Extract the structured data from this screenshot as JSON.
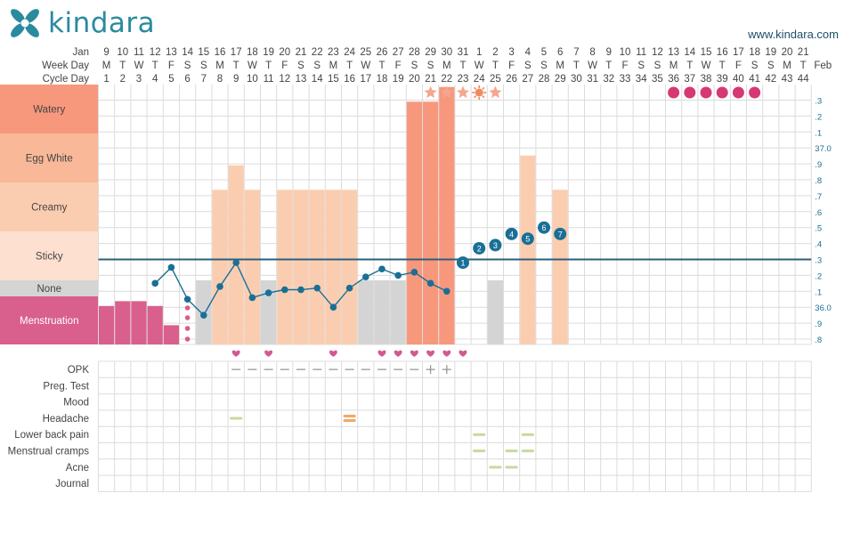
{
  "header": {
    "logo_text": "kindara",
    "website": "www.kindara.com"
  },
  "colors": {
    "menstruation": "#d95f8c",
    "none": "#d4d4d4",
    "sticky": "#fde0cf",
    "creamy": "#fbcdb0",
    "egg_white": "#f9b898",
    "watery": "#f7987d",
    "temp_line": "#2c5f7a",
    "temp_point": "#1a6f96",
    "heart": "#d25a90",
    "star": "#f4a78c",
    "period_prediction": "#d63873",
    "spotting": "#d75d86",
    "mild_symptom": "#c8d9a2",
    "medium_symptom": "#f1a964",
    "test_mark": "#999999",
    "logo": "#2a8aa0"
  },
  "chart_data": {
    "type": "fertility-chart",
    "row_labels": [
      "Jan",
      "Week Day",
      "Cycle Day"
    ],
    "end_label": "Feb",
    "days": [
      {
        "d": "9",
        "w": "M",
        "c": "1"
      },
      {
        "d": "10",
        "w": "T",
        "c": "2"
      },
      {
        "d": "11",
        "w": "W",
        "c": "3"
      },
      {
        "d": "12",
        "w": "T",
        "c": "4"
      },
      {
        "d": "13",
        "w": "F",
        "c": "5"
      },
      {
        "d": "14",
        "w": "S",
        "c": "6"
      },
      {
        "d": "15",
        "w": "S",
        "c": "7"
      },
      {
        "d": "16",
        "w": "M",
        "c": "8"
      },
      {
        "d": "17",
        "w": "T",
        "c": "9"
      },
      {
        "d": "18",
        "w": "W",
        "c": "10"
      },
      {
        "d": "19",
        "w": "T",
        "c": "11"
      },
      {
        "d": "20",
        "w": "F",
        "c": "12"
      },
      {
        "d": "21",
        "w": "S",
        "c": "13"
      },
      {
        "d": "22",
        "w": "S",
        "c": "14"
      },
      {
        "d": "23",
        "w": "M",
        "c": "15"
      },
      {
        "d": "24",
        "w": "T",
        "c": "16"
      },
      {
        "d": "25",
        "w": "W",
        "c": "17"
      },
      {
        "d": "26",
        "w": "T",
        "c": "18"
      },
      {
        "d": "27",
        "w": "F",
        "c": "19"
      },
      {
        "d": "28",
        "w": "S",
        "c": "20"
      },
      {
        "d": "29",
        "w": "S",
        "c": "21"
      },
      {
        "d": "30",
        "w": "M",
        "c": "22"
      },
      {
        "d": "31",
        "w": "T",
        "c": "23"
      },
      {
        "d": "1",
        "w": "W",
        "c": "24"
      },
      {
        "d": "2",
        "w": "T",
        "c": "25"
      },
      {
        "d": "3",
        "w": "F",
        "c": "26"
      },
      {
        "d": "4",
        "w": "S",
        "c": "27"
      },
      {
        "d": "5",
        "w": "S",
        "c": "28"
      },
      {
        "d": "6",
        "w": "M",
        "c": "29"
      },
      {
        "d": "7",
        "w": "T",
        "c": "30"
      },
      {
        "d": "8",
        "w": "W",
        "c": "31"
      },
      {
        "d": "9",
        "w": "T",
        "c": "32"
      },
      {
        "d": "10",
        "w": "F",
        "c": "33"
      },
      {
        "d": "11",
        "w": "S",
        "c": "34"
      },
      {
        "d": "12",
        "w": "S",
        "c": "35"
      },
      {
        "d": "13",
        "w": "M",
        "c": "36"
      },
      {
        "d": "14",
        "w": "T",
        "c": "37"
      },
      {
        "d": "15",
        "w": "W",
        "c": "38"
      },
      {
        "d": "16",
        "w": "T",
        "c": "39"
      },
      {
        "d": "17",
        "w": "F",
        "c": "40"
      },
      {
        "d": "18",
        "w": "S",
        "c": "41"
      },
      {
        "d": "19",
        "w": "S",
        "c": "42"
      },
      {
        "d": "20",
        "w": "M",
        "c": "43"
      },
      {
        "d": "21",
        "w": "T",
        "c": "44"
      }
    ],
    "fluid_categories": [
      "Watery",
      "Egg White",
      "Creamy",
      "Sticky",
      "None",
      "Menstruation"
    ],
    "temp_axis_labels": [
      ".3",
      ".2",
      ".1",
      "37.0",
      ".9",
      ".8",
      ".7",
      ".6",
      ".5",
      ".4",
      ".3",
      ".2",
      ".1",
      "36.0",
      ".9",
      ".8"
    ],
    "temp_axis_values": [
      37.3,
      37.2,
      37.1,
      37.0,
      36.9,
      36.8,
      36.7,
      36.6,
      36.5,
      36.4,
      36.3,
      36.2,
      36.1,
      36.0,
      35.9,
      35.8
    ],
    "coverline": 36.3,
    "fluid": [
      {
        "cd": 1,
        "type": "menstruation",
        "level": 0.8
      },
      {
        "cd": 2,
        "type": "menstruation",
        "level": 0.9
      },
      {
        "cd": 3,
        "type": "menstruation",
        "level": 0.9
      },
      {
        "cd": 4,
        "type": "menstruation",
        "level": 0.8
      },
      {
        "cd": 5,
        "type": "menstruation",
        "level": 0.4
      },
      {
        "cd": 7,
        "type": "none",
        "level": 1
      },
      {
        "cd": 8,
        "type": "creamy",
        "level": 0.85
      },
      {
        "cd": 9,
        "type": "creamy",
        "level": 1.35
      },
      {
        "cd": 10,
        "type": "creamy",
        "level": 0.85
      },
      {
        "cd": 11,
        "type": "none",
        "level": 1
      },
      {
        "cd": 12,
        "type": "creamy",
        "level": 0.85
      },
      {
        "cd": 13,
        "type": "creamy",
        "level": 0.85
      },
      {
        "cd": 14,
        "type": "creamy",
        "level": 0.85
      },
      {
        "cd": 15,
        "type": "creamy",
        "level": 0.85
      },
      {
        "cd": 16,
        "type": "creamy",
        "level": 0.85
      },
      {
        "cd": 17,
        "type": "none",
        "level": 1
      },
      {
        "cd": 18,
        "type": "none",
        "level": 1
      },
      {
        "cd": 19,
        "type": "none",
        "level": 1
      },
      {
        "cd": 20,
        "type": "watery",
        "level": 0.65
      },
      {
        "cd": 21,
        "type": "watery",
        "level": 0.65
      },
      {
        "cd": 22,
        "type": "watery",
        "level": 0.95
      },
      {
        "cd": 25,
        "type": "none",
        "level": 1
      },
      {
        "cd": 27,
        "type": "creamy",
        "level": 1.55
      },
      {
        "cd": 29,
        "type": "creamy",
        "level": 0.85
      }
    ],
    "spotting_days": [
      6
    ],
    "temperatures": [
      {
        "cd": 4,
        "t": 36.15
      },
      {
        "cd": 5,
        "t": 36.25
      },
      {
        "cd": 6,
        "t": 36.05
      },
      {
        "cd": 7,
        "t": 35.95
      },
      {
        "cd": 8,
        "t": 36.13
      },
      {
        "cd": 9,
        "t": 36.28
      },
      {
        "cd": 10,
        "t": 36.06
      },
      {
        "cd": 11,
        "t": 36.09
      },
      {
        "cd": 12,
        "t": 36.11
      },
      {
        "cd": 13,
        "t": 36.11
      },
      {
        "cd": 14,
        "t": 36.12
      },
      {
        "cd": 15,
        "t": 36.0
      },
      {
        "cd": 16,
        "t": 36.12
      },
      {
        "cd": 17,
        "t": 36.19
      },
      {
        "cd": 18,
        "t": 36.24
      },
      {
        "cd": 19,
        "t": 36.2
      },
      {
        "cd": 20,
        "t": 36.22
      },
      {
        "cd": 21,
        "t": 36.15
      },
      {
        "cd": 22,
        "t": 36.1
      },
      {
        "cd": 23,
        "t": 36.28,
        "n": "1"
      },
      {
        "cd": 24,
        "t": 36.37,
        "n": "2"
      },
      {
        "cd": 25,
        "t": 36.39,
        "n": "3"
      },
      {
        "cd": 26,
        "t": 36.46,
        "n": "4"
      },
      {
        "cd": 27,
        "t": 36.43,
        "n": "5"
      },
      {
        "cd": 28,
        "t": 36.5,
        "n": "6"
      },
      {
        "cd": 29,
        "t": 36.46,
        "n": "7"
      }
    ],
    "heart_days": [
      9,
      11,
      15,
      18,
      19,
      20,
      21,
      22,
      23
    ],
    "star_days": [
      21,
      22,
      23,
      24,
      25
    ],
    "sun_day": 24,
    "predicted_period_days": [
      36,
      37,
      38,
      39,
      40,
      41
    ],
    "sub_rows": [
      "OPK",
      "Preg. Test",
      "Mood",
      "Headache",
      "Lower back pain",
      "Menstrual cramps",
      "Acne",
      "Journal"
    ],
    "opk": [
      {
        "cd": 9,
        "v": "-"
      },
      {
        "cd": 10,
        "v": "-"
      },
      {
        "cd": 11,
        "v": "-"
      },
      {
        "cd": 12,
        "v": "-"
      },
      {
        "cd": 13,
        "v": "-"
      },
      {
        "cd": 14,
        "v": "-"
      },
      {
        "cd": 15,
        "v": "-"
      },
      {
        "cd": 16,
        "v": "-"
      },
      {
        "cd": 17,
        "v": "-"
      },
      {
        "cd": 18,
        "v": "-"
      },
      {
        "cd": 19,
        "v": "-"
      },
      {
        "cd": 20,
        "v": "-"
      },
      {
        "cd": 21,
        "v": "+"
      },
      {
        "cd": 22,
        "v": "+"
      }
    ],
    "symptoms": [
      {
        "row": "Headache",
        "cd": 9,
        "severity": "mild"
      },
      {
        "row": "Headache",
        "cd": 16,
        "severity": "medium"
      },
      {
        "row": "Lower back pain",
        "cd": 24,
        "severity": "mild"
      },
      {
        "row": "Lower back pain",
        "cd": 27,
        "severity": "mild"
      },
      {
        "row": "Menstrual cramps",
        "cd": 24,
        "severity": "mild"
      },
      {
        "row": "Menstrual cramps",
        "cd": 26,
        "severity": "mild"
      },
      {
        "row": "Menstrual cramps",
        "cd": 27,
        "severity": "mild"
      },
      {
        "row": "Acne",
        "cd": 25,
        "severity": "mild"
      },
      {
        "row": "Acne",
        "cd": 26,
        "severity": "mild"
      }
    ]
  }
}
